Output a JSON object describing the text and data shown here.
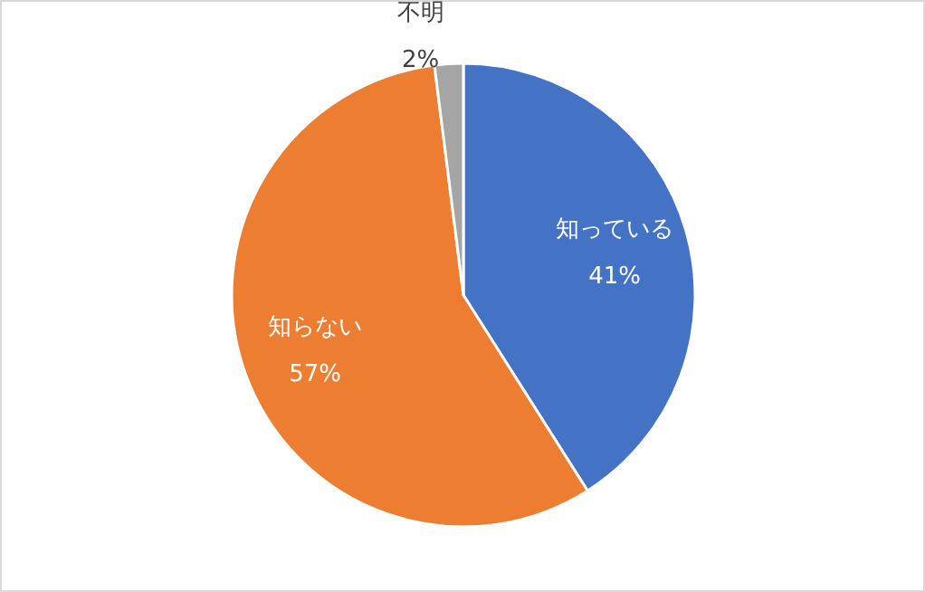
{
  "chart_data": {
    "type": "pie",
    "categories": [
      "知っている",
      "知らない",
      "不明"
    ],
    "values": [
      41,
      57,
      2
    ],
    "value_labels": [
      "41%",
      "57%",
      "2%"
    ],
    "colors": [
      "#4472c4",
      "#ed7d31",
      "#a5a5a5"
    ]
  }
}
